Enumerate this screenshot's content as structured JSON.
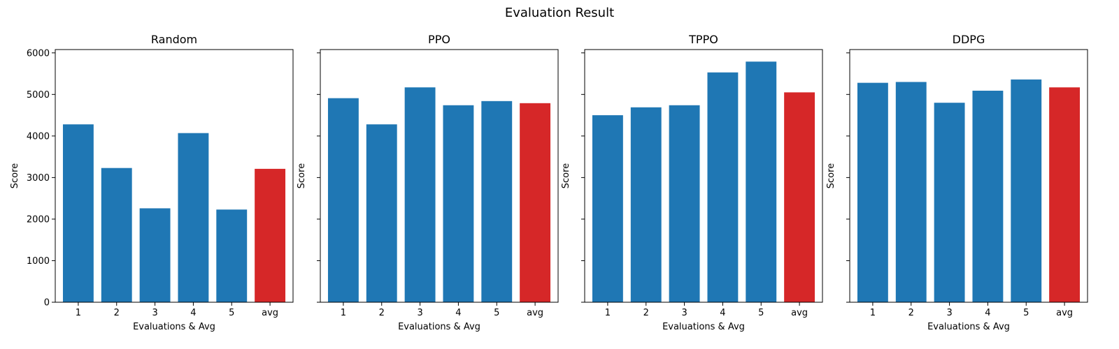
{
  "title": "Evaluation Result",
  "colors": {
    "eval": "#1f77b4",
    "avg": "#d62728"
  },
  "chart_data": [
    {
      "type": "bar",
      "title": "Random",
      "categories": [
        "1",
        "2",
        "3",
        "4",
        "5",
        "avg"
      ],
      "values": [
        4280,
        3230,
        2260,
        4070,
        2230,
        3210
      ],
      "xlabel": "Evaluations & Avg",
      "ylabel": "Score",
      "ylim": [
        0,
        6080
      ],
      "yticks": [
        "0",
        "1000",
        "2000",
        "3000",
        "4000",
        "5000",
        "6000"
      ],
      "grid": false
    },
    {
      "type": "bar",
      "title": "PPO",
      "categories": [
        "1",
        "2",
        "3",
        "4",
        "5",
        "avg"
      ],
      "values": [
        4910,
        4280,
        5170,
        4740,
        4840,
        4790
      ],
      "xlabel": "Evaluations & Avg",
      "ylabel": "Score",
      "ylim": [
        0,
        6080
      ],
      "grid": false
    },
    {
      "type": "bar",
      "title": "TPPO",
      "categories": [
        "1",
        "2",
        "3",
        "4",
        "5",
        "avg"
      ],
      "values": [
        4500,
        4690,
        4740,
        5530,
        5790,
        5050
      ],
      "xlabel": "Evaluations & Avg",
      "ylabel": "Score",
      "ylim": [
        0,
        6080
      ],
      "grid": false
    },
    {
      "type": "bar",
      "title": "DDPG",
      "categories": [
        "1",
        "2",
        "3",
        "4",
        "5",
        "avg"
      ],
      "values": [
        5280,
        5300,
        4800,
        5090,
        5360,
        5170
      ],
      "xlabel": "Evaluations & Avg",
      "ylabel": "Score",
      "ylim": [
        0,
        6080
      ],
      "grid": false
    }
  ]
}
